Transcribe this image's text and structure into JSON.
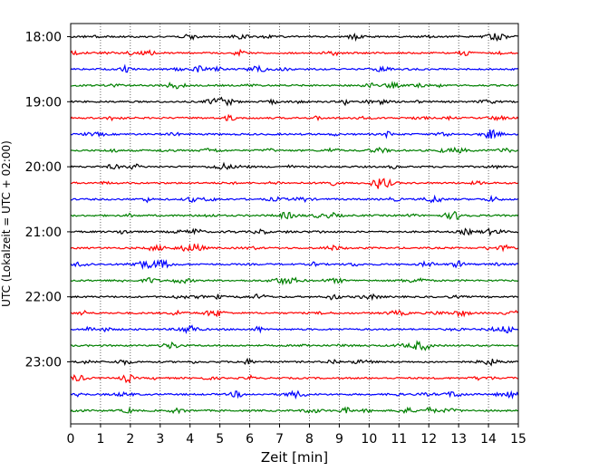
{
  "chart_data": {
    "type": "line",
    "subtype": "helicorder",
    "title": "",
    "xlabel": "Zeit  [min]",
    "ylabel": "UTC (Lokalzeit = UTC + 02:00)",
    "xlim": [
      0,
      15
    ],
    "x_ticks": [
      0,
      1,
      2,
      3,
      4,
      5,
      6,
      7,
      8,
      9,
      10,
      11,
      12,
      13,
      14,
      15
    ],
    "x_tick_labels": [
      "0",
      "1",
      "2",
      "3",
      "4",
      "5",
      "6",
      "7",
      "8",
      "9",
      "10",
      "11",
      "12",
      "13",
      "14",
      "15"
    ],
    "y_tick_labels": [
      "18:00",
      "19:00",
      "20:00",
      "21:00",
      "22:00",
      "23:00"
    ],
    "trace_count": 24,
    "trace_start": "18:00",
    "trace_interval_min": 15,
    "trace_colors": [
      "#000000",
      "#ff0000",
      "#0000ff",
      "#008000"
    ],
    "grid": "vertical dotted lines at each minute",
    "legend": "none"
  }
}
